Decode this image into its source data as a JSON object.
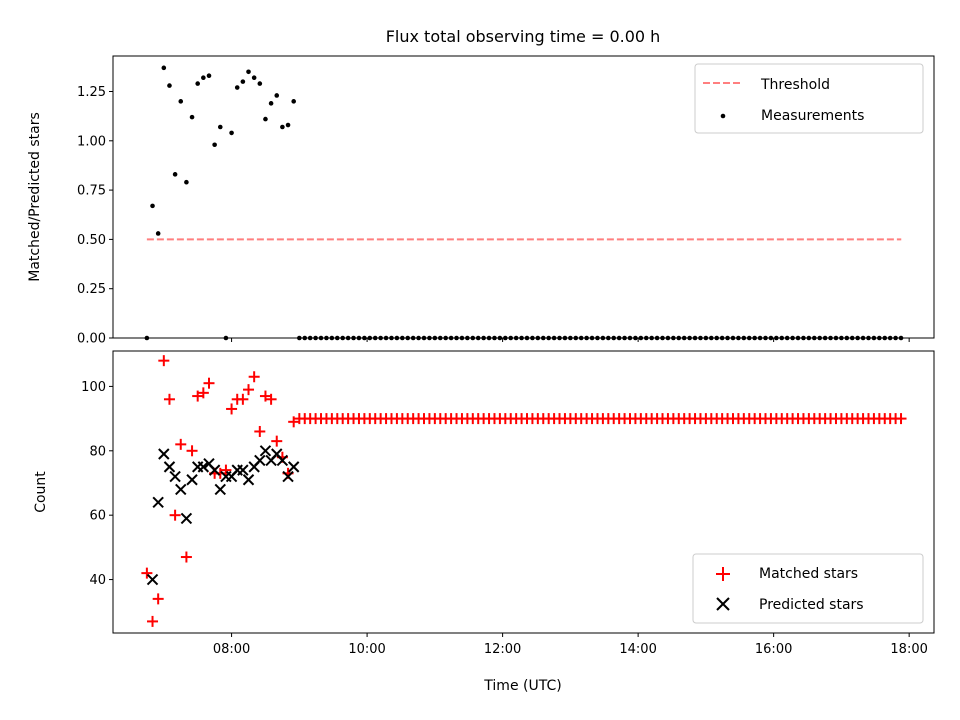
{
  "chart_data": [
    {
      "type": "scatter",
      "title": "Flux total observing time = 0.00 h",
      "xlabel": "",
      "ylabel": "Matched/Predicted stars",
      "xlim": [
        "06:15",
        "18:22"
      ],
      "ylim": [
        0,
        1.43
      ],
      "y_ticks": [
        "0.00",
        "0.25",
        "0.50",
        "0.75",
        "1.00",
        "1.25"
      ],
      "x_ticks": [
        "08:00",
        "10:00",
        "12:00",
        "14:00",
        "16:00",
        "18:00"
      ],
      "legend_position": "top-right",
      "series": [
        {
          "name": "Threshold",
          "style": "dashed-line",
          "color": "#ff7f7f",
          "x": [
            "06:45",
            "17:53"
          ],
          "y": [
            0.5,
            0.5
          ]
        },
        {
          "name": "Measurements",
          "style": "dot",
          "color": "#000000",
          "x": [
            "06:45",
            "06:50",
            "06:55",
            "07:00",
            "07:05",
            "07:10",
            "07:15",
            "07:20",
            "07:25",
            "07:30",
            "07:35",
            "07:40",
            "07:45",
            "07:50",
            "07:55",
            "08:00",
            "08:05",
            "08:10",
            "08:15",
            "08:20",
            "08:25",
            "08:30",
            "08:35",
            "08:40",
            "08:45",
            "08:50",
            "08:55"
          ],
          "y": [
            0.0,
            0.67,
            0.53,
            1.37,
            1.28,
            0.83,
            1.2,
            0.79,
            1.12,
            1.29,
            1.32,
            1.33,
            0.98,
            1.07,
            0.0,
            1.04,
            1.27,
            1.3,
            1.35,
            1.32,
            1.29,
            1.11,
            1.19,
            1.23,
            1.07,
            1.08,
            1.2
          ]
        },
        {
          "name": "",
          "style": "dot",
          "color": "#000000",
          "x_range": [
            "09:00",
            "17:53"
          ],
          "x_step_minutes": 4.8,
          "y_constant": 0.0
        }
      ]
    },
    {
      "type": "scatter",
      "title": "",
      "xlabel": "Time (UTC)",
      "ylabel": "Count",
      "xlim": [
        "06:15",
        "18:22"
      ],
      "ylim": [
        23.4,
        111
      ],
      "y_ticks": [
        "40",
        "60",
        "80",
        "100"
      ],
      "x_ticks": [
        "08:00",
        "10:00",
        "12:00",
        "14:00",
        "16:00",
        "18:00"
      ],
      "legend_position": "bottom-right",
      "series": [
        {
          "name": "Matched stars",
          "marker": "plus",
          "color": "#ff0000",
          "x": [
            "06:45",
            "06:50",
            "06:55",
            "07:00",
            "07:05",
            "07:10",
            "07:15",
            "07:20",
            "07:25",
            "07:30",
            "07:35",
            "07:40",
            "07:45",
            "07:50",
            "07:55",
            "08:00",
            "08:05",
            "08:10",
            "08:15",
            "08:20",
            "08:25",
            "08:30",
            "08:35",
            "08:40",
            "08:45",
            "08:50",
            "08:55"
          ],
          "y": [
            42,
            27,
            34,
            108,
            96,
            60,
            82,
            47,
            80,
            97,
            98,
            101,
            73,
            73,
            74,
            93,
            96,
            96,
            99,
            103,
            86,
            97,
            96,
            83,
            78,
            73,
            89
          ]
        },
        {
          "name": "",
          "marker": "plus",
          "color": "#ff0000",
          "x_range": [
            "09:00",
            "17:53"
          ],
          "x_step_minutes": 4.8,
          "y_constant": 90
        },
        {
          "name": "Predicted stars",
          "marker": "x",
          "color": "#000000",
          "x": [
            "06:50",
            "06:55",
            "07:00",
            "07:05",
            "07:10",
            "07:15",
            "07:20",
            "07:25",
            "07:30",
            "07:35",
            "07:40",
            "07:45",
            "07:50",
            "07:55",
            "08:00",
            "08:05",
            "08:10",
            "08:15",
            "08:20",
            "08:25",
            "08:30",
            "08:35",
            "08:40",
            "08:45",
            "08:50",
            "08:55"
          ],
          "y": [
            40,
            64,
            79,
            75,
            72,
            68,
            59,
            71,
            75,
            75,
            76,
            74,
            68,
            72,
            72,
            74,
            74,
            71,
            75,
            77,
            80,
            77,
            79,
            77,
            72,
            75
          ]
        }
      ]
    }
  ],
  "colors": {
    "threshold": "#ff7f7f",
    "matched": "#ff0000",
    "predicted": "#000000",
    "measurements": "#000000"
  }
}
